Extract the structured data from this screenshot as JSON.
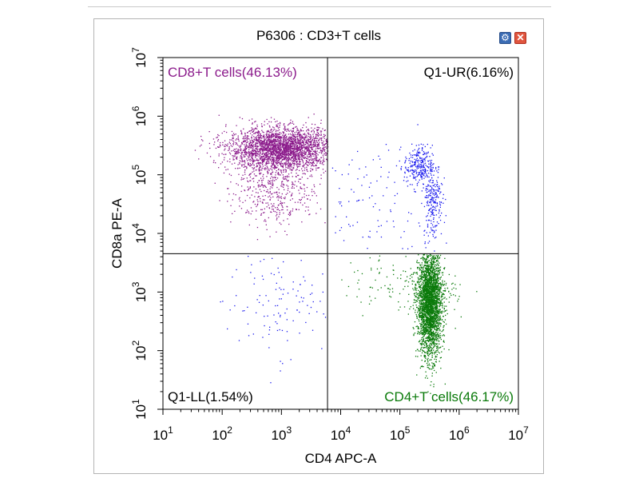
{
  "panel": {
    "title": "P6306 : CD3+T cells",
    "settings_icon": "gear-icon",
    "close_icon": "close-icon",
    "close_glyph": "✕",
    "settings_glyph": "⚙"
  },
  "chart_data": {
    "type": "scatter",
    "title": "P6306 : CD3+T cells",
    "xlabel": "CD4 APC-A",
    "ylabel": "CD8a PE-A",
    "x_scale": "log",
    "y_scale": "log",
    "xlim": [
      10,
      10000000
    ],
    "ylim": [
      10,
      10000000
    ],
    "x_ticks": [
      {
        "value": 10,
        "base": "10",
        "exp": "1"
      },
      {
        "value": 100,
        "base": "10",
        "exp": "2"
      },
      {
        "value": 1000,
        "base": "10",
        "exp": "3"
      },
      {
        "value": 10000,
        "base": "10",
        "exp": "4"
      },
      {
        "value": 100000,
        "base": "10",
        "exp": "5"
      },
      {
        "value": 1000000,
        "base": "10",
        "exp": "6"
      },
      {
        "value": 10000000,
        "base": "10",
        "exp": "7"
      }
    ],
    "y_ticks": [
      {
        "value": 10,
        "base": "10",
        "exp": "1"
      },
      {
        "value": 100,
        "base": "10",
        "exp": "2"
      },
      {
        "value": 1000,
        "base": "10",
        "exp": "3"
      },
      {
        "value": 10000,
        "base": "10",
        "exp": "4"
      },
      {
        "value": 100000,
        "base": "10",
        "exp": "5"
      },
      {
        "value": 1000000,
        "base": "10",
        "exp": "6"
      },
      {
        "value": 10000000,
        "base": "10",
        "exp": "7"
      }
    ],
    "quadrant_gate": {
      "x": 6000,
      "y": 4500
    },
    "quadrants": [
      {
        "name": "CD8+T cells",
        "percent": "46.13%",
        "label": "CD8+T cells(46.13%)",
        "position": "top-left",
        "color": "#8b1a8b"
      },
      {
        "name": "Q1-UR",
        "percent": "6.16%",
        "label": "Q1-UR(6.16%)",
        "position": "top-right",
        "color": "#1a1aee"
      },
      {
        "name": "Q1-LL",
        "percent": "1.54%",
        "label": "Q1-LL(1.54%)",
        "position": "bottom-left",
        "color": "#1a1aee"
      },
      {
        "name": "CD4+T cells",
        "percent": "46.17%",
        "label": "CD4+T cells(46.17%)",
        "position": "bottom-right",
        "color": "#0a7a0a"
      }
    ],
    "series": [
      {
        "name": "CD8+T cells",
        "color": "#8b1a8b",
        "clusters": [
          {
            "x_center_log10": 3.0,
            "y_center_log10": 5.45,
            "x_sd": 0.45,
            "y_sd": 0.18,
            "n": 2600
          },
          {
            "x_center_log10": 2.9,
            "y_center_log10": 4.8,
            "x_sd": 0.35,
            "y_sd": 0.35,
            "n": 500
          }
        ]
      },
      {
        "name": "Q1-UR",
        "color": "#1a1aee",
        "clusters": [
          {
            "x_center_log10": 5.3,
            "y_center_log10": 5.15,
            "x_sd": 0.12,
            "y_sd": 0.18,
            "n": 260
          },
          {
            "x_center_log10": 5.55,
            "y_center_log10": 4.6,
            "x_sd": 0.08,
            "y_sd": 0.35,
            "n": 240
          },
          {
            "x_center_log10": 4.5,
            "y_center_log10": 4.5,
            "x_sd": 0.5,
            "y_sd": 0.5,
            "n": 90
          }
        ]
      },
      {
        "name": "Q1-LL",
        "color": "#1a1aee",
        "clusters": [
          {
            "x_center_log10": 2.9,
            "y_center_log10": 2.8,
            "x_sd": 0.45,
            "y_sd": 0.45,
            "n": 110
          }
        ]
      },
      {
        "name": "CD4+T cells",
        "color": "#0a7a0a",
        "clusters": [
          {
            "x_center_log10": 5.5,
            "y_center_log10": 2.8,
            "x_sd": 0.1,
            "y_sd": 0.45,
            "n": 2600
          },
          {
            "x_center_log10": 5.5,
            "y_center_log10": 3.0,
            "x_sd": 0.22,
            "y_sd": 0.2,
            "n": 200
          },
          {
            "x_center_log10": 4.9,
            "y_center_log10": 3.2,
            "x_sd": 0.45,
            "y_sd": 0.25,
            "n": 80
          }
        ]
      }
    ]
  }
}
